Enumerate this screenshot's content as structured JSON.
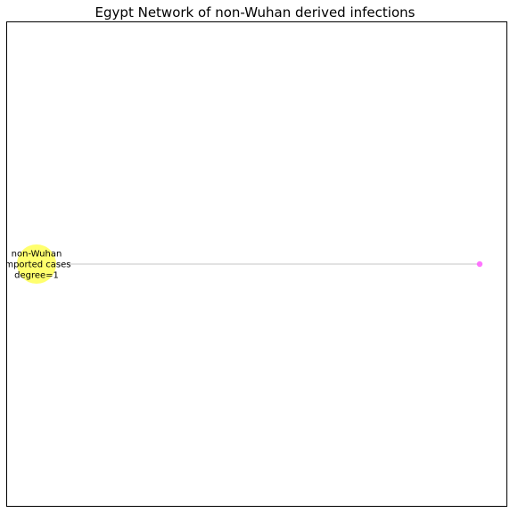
{
  "title": "Egypt Network of non-Wuhan derived infections",
  "network": {
    "nodes": [
      {
        "id": "hub",
        "label_lines": [
          "non-Wuhan",
          "imported cases",
          "degree=1"
        ],
        "color": "#ffff66",
        "kind": "hub"
      },
      {
        "id": "case",
        "label_lines": [],
        "color": "#ff66ff",
        "kind": "case"
      }
    ],
    "edges": [
      {
        "source": "hub",
        "target": "case",
        "color": "#d9d9d9"
      }
    ]
  }
}
